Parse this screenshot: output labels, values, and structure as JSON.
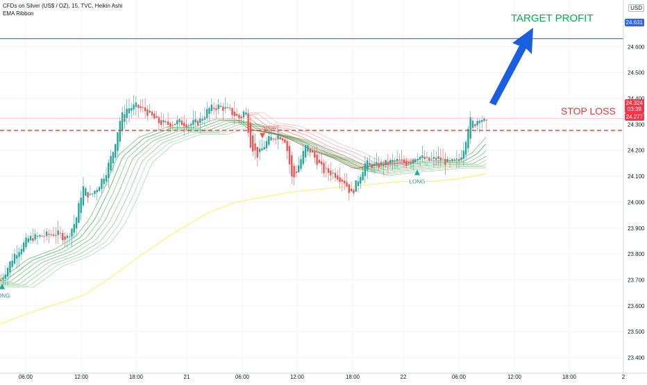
{
  "header": {
    "title": "CFDs on Silver (US$ / OZ), 15, TVC, Heikin Ashi",
    "indicator": "EMA Ribbon",
    "currency": "USD"
  },
  "price_tags": {
    "target_line": "24.631",
    "current_price": "24.324",
    "countdown": "03:39",
    "stop_line": "24.277"
  },
  "annotations": {
    "target_profit": "TARGET PROFIT",
    "stop_loss": "STOP LOSS",
    "short_label": "SHORT",
    "long_label_1": "LONG",
    "long_label_2": "LONG"
  },
  "colors": {
    "up": "#26a69a",
    "down": "#ef5350",
    "ribbon_green": "#2e9c4a",
    "ribbon_red": "#e0564f",
    "sma": "#fff176",
    "target_line": "#2962ff",
    "stop_line": "#e53935",
    "annotation_green": "#00b050",
    "arrow": "#1a5fe0"
  },
  "chart_data": {
    "type": "candlestick",
    "title": "CFDs on Silver (US$ / OZ), 15, TVC, Heikin Ashi",
    "ylim": [
      23.34,
      24.78
    ],
    "y_ticks": [
      "23.400",
      "23.500",
      "23.600",
      "23.700",
      "23.800",
      "23.900",
      "24.000",
      "24.100",
      "24.200",
      "24.300",
      "24.400",
      "24.500",
      "24.600"
    ],
    "x_ticks": [
      "06:00",
      "12:00",
      "18:00",
      "21",
      "06:00",
      "12:00",
      "18:00",
      "22",
      "06:00",
      "12:00",
      "18:00",
      "2"
    ],
    "price_path": [
      [
        0,
        23.7
      ],
      [
        8,
        23.74
      ],
      [
        20,
        23.8
      ],
      [
        40,
        23.86
      ],
      [
        60,
        23.87
      ],
      [
        80,
        23.88
      ],
      [
        95,
        23.86
      ],
      [
        108,
        23.93
      ],
      [
        118,
        24.06
      ],
      [
        128,
        24.02
      ],
      [
        140,
        24.06
      ],
      [
        152,
        24.12
      ],
      [
        162,
        24.2
      ],
      [
        172,
        24.32
      ],
      [
        180,
        24.36
      ],
      [
        195,
        24.37
      ],
      [
        210,
        24.35
      ],
      [
        225,
        24.31
      ],
      [
        240,
        24.3
      ],
      [
        255,
        24.31
      ],
      [
        270,
        24.3
      ],
      [
        285,
        24.31
      ],
      [
        300,
        24.36
      ],
      [
        315,
        24.37
      ],
      [
        330,
        24.35
      ],
      [
        345,
        24.32
      ],
      [
        352,
        24.36
      ],
      [
        360,
        24.22
      ],
      [
        370,
        24.18
      ],
      [
        385,
        24.24
      ],
      [
        400,
        24.26
      ],
      [
        410,
        24.24
      ],
      [
        420,
        24.08
      ],
      [
        430,
        24.15
      ],
      [
        440,
        24.22
      ],
      [
        450,
        24.18
      ],
      [
        465,
        24.12
      ],
      [
        480,
        24.11
      ],
      [
        495,
        24.08
      ],
      [
        505,
        24.03
      ],
      [
        515,
        24.09
      ],
      [
        525,
        24.15
      ],
      [
        540,
        24.14
      ],
      [
        555,
        24.15
      ],
      [
        570,
        24.16
      ],
      [
        585,
        24.15
      ],
      [
        600,
        24.18
      ],
      [
        615,
        24.16
      ],
      [
        630,
        24.17
      ],
      [
        645,
        24.15
      ],
      [
        660,
        24.16
      ],
      [
        668,
        24.22
      ],
      [
        675,
        24.32
      ],
      [
        682,
        24.3
      ],
      [
        690,
        24.33
      ],
      [
        700,
        24.3
      ]
    ],
    "sma_line": [
      [
        0,
        23.53
      ],
      [
        50,
        23.58
      ],
      [
        120,
        23.64
      ],
      [
        160,
        23.71
      ],
      [
        200,
        23.79
      ],
      [
        250,
        23.88
      ],
      [
        300,
        23.96
      ],
      [
        340,
        24.0
      ],
      [
        380,
        24.02
      ],
      [
        420,
        24.04
      ],
      [
        460,
        24.05
      ],
      [
        500,
        24.06
      ],
      [
        540,
        24.07
      ],
      [
        580,
        24.08
      ],
      [
        620,
        24.08
      ],
      [
        660,
        24.09
      ],
      [
        700,
        24.11
      ]
    ],
    "ema_ribbon_base": [
      [
        0,
        23.7
      ],
      [
        40,
        23.78
      ],
      [
        80,
        23.82
      ],
      [
        110,
        23.87
      ],
      [
        130,
        23.94
      ],
      [
        150,
        24.05
      ],
      [
        170,
        24.18
      ],
      [
        200,
        24.25
      ],
      [
        240,
        24.29
      ],
      [
        280,
        24.29
      ],
      [
        310,
        24.32
      ],
      [
        340,
        24.32
      ],
      [
        360,
        24.28
      ],
      [
        390,
        24.27
      ],
      [
        420,
        24.24
      ],
      [
        450,
        24.2
      ],
      [
        480,
        24.17
      ],
      [
        510,
        24.13
      ],
      [
        540,
        24.14
      ],
      [
        580,
        24.15
      ],
      [
        620,
        24.16
      ],
      [
        660,
        24.16
      ],
      [
        680,
        24.19
      ],
      [
        700,
        24.25
      ]
    ],
    "signals": [
      {
        "label": "LONG",
        "type": "buy",
        "x": 3,
        "price": 23.675
      },
      {
        "label": "SHORT",
        "type": "sell",
        "x": 378,
        "price": 24.275
      },
      {
        "label": "LONG",
        "type": "buy",
        "x": 601,
        "price": 24.115
      }
    ],
    "target_price": 24.631,
    "stop_price": 24.277,
    "current_price": 24.324
  }
}
